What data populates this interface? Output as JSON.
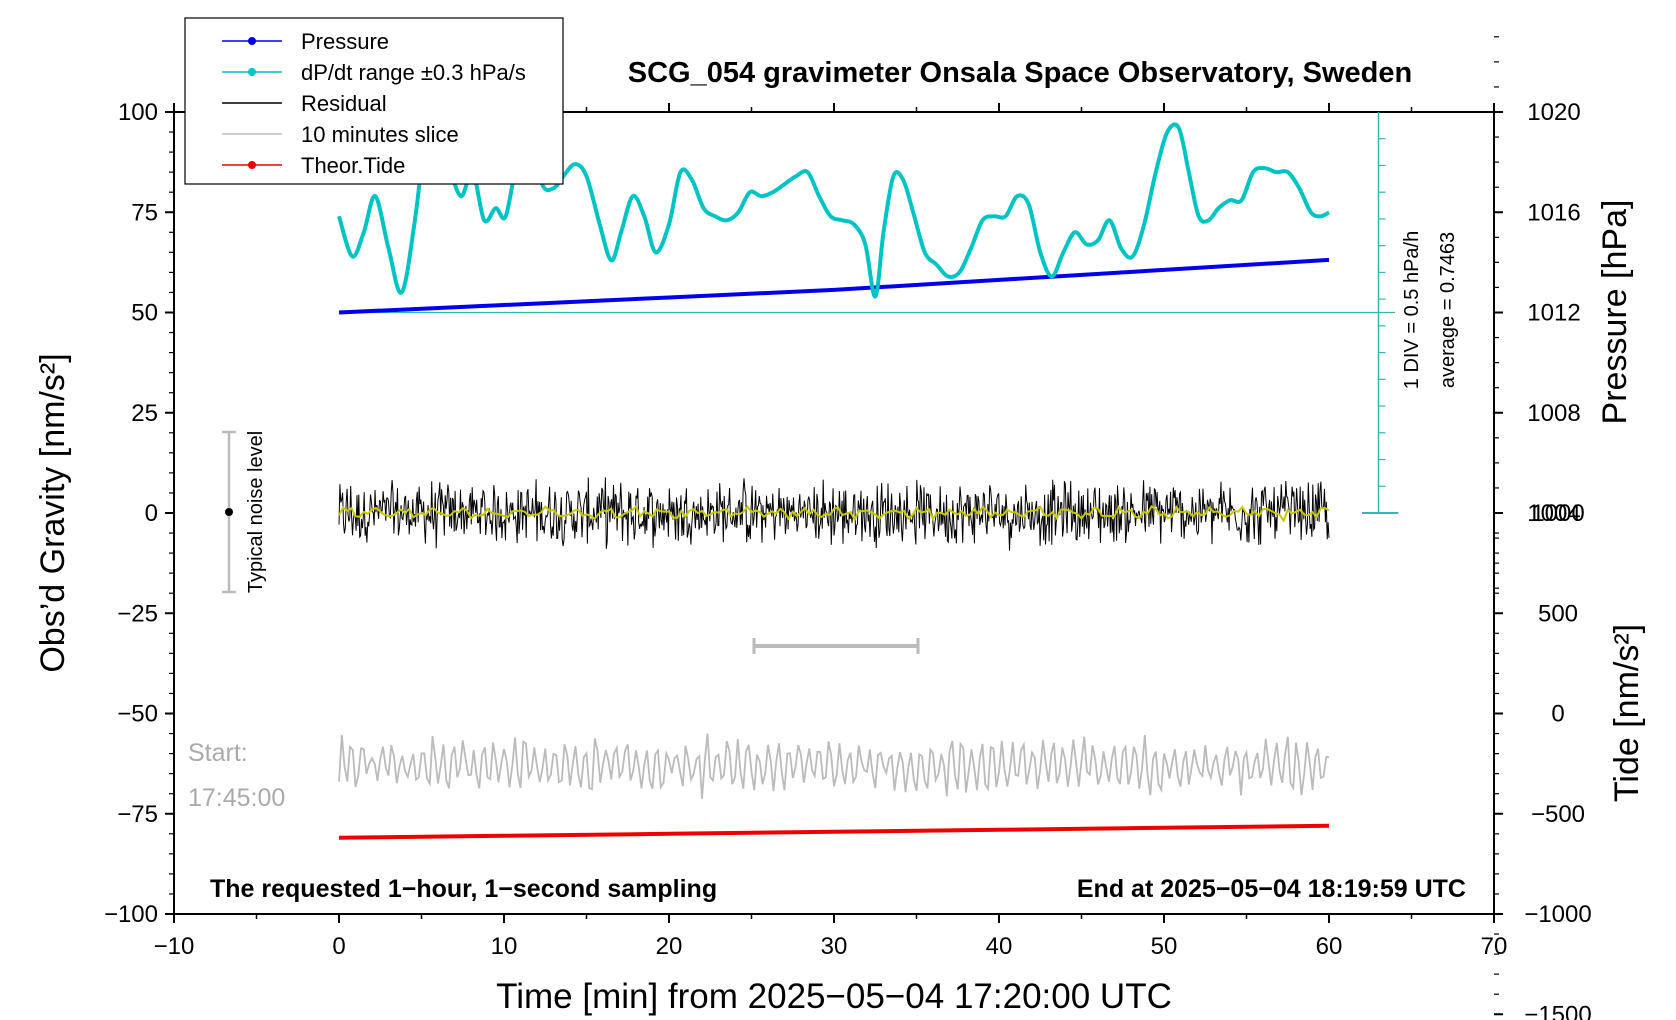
{
  "chart_data": {
    "type": "line",
    "title": "SCG_054 gravimeter Onsala Space Observatory, Sweden",
    "xlabel": "Time [min] from 2025−05−04 17:20:00 UTC",
    "ylabel_left": "Obs’d Gravity [nm/s²]",
    "ylabel_right_pressure": "Pressure [hPa]",
    "ylabel_right_tide": "Tide [nm/s²]",
    "xlim": [
      -10,
      70
    ],
    "ylim": [
      -100,
      100
    ],
    "x_ticks": [
      -10,
      0,
      10,
      20,
      30,
      40,
      50,
      60,
      70
    ],
    "x_tick_labels": [
      "−10",
      "0",
      "10",
      "20",
      "30",
      "40",
      "50",
      "60",
      "70"
    ],
    "y_ticks": [
      100,
      75,
      50,
      25,
      0,
      -25,
      -50,
      -75,
      -100
    ],
    "y_tick_labels": [
      "100",
      "75",
      "50",
      "25",
      "0",
      "−25",
      "−50",
      "−75",
      "−100"
    ],
    "pressure_axis": {
      "ticks": [
        1020,
        1016,
        1012,
        1008,
        1004
      ],
      "tick_labels": [
        "1020",
        "1016",
        "1012",
        "1008",
        "1004"
      ],
      "range": [
        1000,
        1024
      ]
    },
    "tide_axis": {
      "ticks": [
        1000,
        500,
        0,
        -500,
        -1000,
        -1500
      ],
      "tick_labels": [
        "1000",
        "500",
        "0",
        "−500",
        "−1000",
        "−1500"
      ],
      "range": [
        -1500,
        1000
      ]
    },
    "legend": {
      "placement": "top-left",
      "entries": [
        {
          "label": "Pressure",
          "color": "#0000ee",
          "marker": "dot"
        },
        {
          "label": "dP/dt range ±0.3 hPa/s",
          "color": "#00c4c4",
          "marker": "dot"
        },
        {
          "label": "Residual",
          "color": "#000000",
          "marker": "none"
        },
        {
          "label": "10 minutes slice",
          "color": "#bbbbbb",
          "marker": "none"
        },
        {
          "label": "Theor.Tide",
          "color": "#ee0000",
          "marker": "dot"
        }
      ]
    },
    "series": [
      {
        "name": "Pressure",
        "axis": "pressure",
        "color": "#0000ee",
        "x": [
          0,
          10,
          20,
          30,
          40,
          50,
          60
        ],
        "y": [
          1012.0,
          1012.3,
          1012.6,
          1012.9,
          1013.3,
          1013.7,
          1014.1
        ]
      },
      {
        "name": "dP/dt range ±0.3 hPa/s",
        "axis": "gravity",
        "color": "#00c4c4",
        "x": [
          0,
          0.8,
          1.5,
          2.2,
          3.0,
          3.8,
          4.6,
          5.3,
          6.0,
          6.7,
          7.4,
          8.1,
          8.8,
          9.5,
          10.1,
          10.8,
          11.5,
          12.3,
          13.0,
          13.6,
          14.3,
          15.0,
          15.8,
          16.5,
          17.1,
          17.8,
          18.5,
          19.2,
          20.0,
          20.7,
          21.4,
          22.1,
          22.8,
          23.5,
          24.2,
          24.9,
          25.6,
          26.3,
          27.0,
          27.7,
          28.4,
          29.1,
          29.8,
          30.5,
          31.2,
          31.9,
          32.5,
          33.0,
          33.6,
          34.2,
          34.8,
          35.5,
          36.2,
          36.9,
          37.6,
          38.3,
          39.0,
          39.7,
          40.4,
          41.1,
          41.8,
          42.5,
          43.2,
          43.9,
          44.6,
          45.3,
          46.0,
          46.7,
          47.4,
          48.1,
          48.8,
          49.5,
          50.2,
          50.9,
          51.5,
          52.1,
          52.7,
          53.3,
          54.0,
          54.7,
          55.4,
          56.1,
          56.8,
          57.5,
          58.2,
          58.9,
          59.5,
          60.0
        ],
        "y": [
          74,
          64,
          70,
          79,
          66,
          55,
          73,
          96,
          103,
          87,
          79,
          85,
          73,
          76,
          74,
          88,
          95,
          82,
          81,
          84,
          87,
          84,
          72,
          63,
          70,
          79,
          74,
          65,
          72,
          85,
          83,
          76,
          74,
          73,
          75,
          80,
          79,
          80,
          82,
          84,
          85,
          79,
          74,
          73,
          72,
          67,
          54,
          70,
          84,
          83,
          75,
          65,
          62,
          59,
          60,
          66,
          73,
          74,
          74,
          79,
          77,
          65,
          59,
          65,
          70,
          67,
          68,
          73,
          66,
          64,
          72,
          85,
          95,
          96,
          85,
          74,
          73,
          76,
          78,
          78,
          85,
          86,
          85,
          85,
          81,
          75,
          74,
          75
        ]
      },
      {
        "name": "Residual",
        "axis": "gravity",
        "color": "#000000",
        "x_range": [
          0,
          60
        ],
        "approx_mean": 0,
        "approx_spread": 8
      },
      {
        "name": "10 minutes slice",
        "axis": "gravity",
        "color": "#bbbbbb",
        "x_range": [
          0,
          60
        ],
        "approx_mean": -63,
        "approx_spread": 8
      },
      {
        "name": "Theor.Tide",
        "axis": "tide",
        "color": "#ee0000",
        "x": [
          0,
          10,
          20,
          30,
          40,
          50,
          60
        ],
        "y": [
          -620,
          -610,
          -600,
          -590,
          -580,
          -570,
          -560
        ]
      }
    ],
    "annotations": {
      "noise_label": "Typical noise level",
      "noise_bar": [
        -20,
        20
      ],
      "slice_bracket": {
        "x": [
          25,
          35
        ],
        "y": -33
      },
      "start_label_1": "Start:",
      "start_label_2": "17:45:00",
      "requested_label": "The requested 1−hour, 1−second sampling",
      "end_label": "End at 2025−05−04 18:19:59 UTC",
      "div_label": "1 DIV = 0.5 hPa/h",
      "average_label": "average = 0.7463"
    },
    "grid": false
  }
}
